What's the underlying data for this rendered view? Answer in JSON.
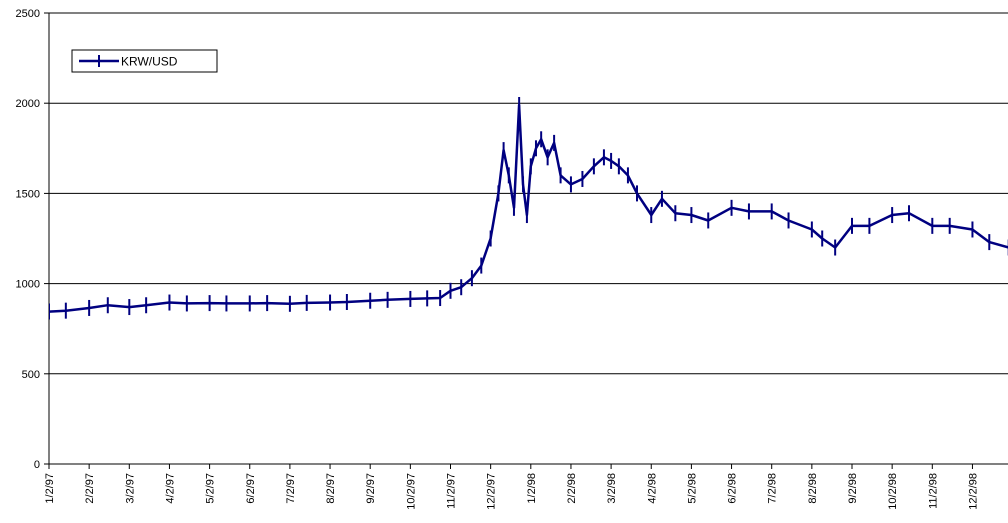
{
  "chart_data": {
    "type": "line",
    "title": "",
    "xlabel": "",
    "ylabel": "",
    "ylim": [
      0,
      2500
    ],
    "yticks": [
      0,
      500,
      1000,
      1500,
      2000,
      2500
    ],
    "grid": "horizontal",
    "legend_position": "top-left",
    "x_tick_labels": [
      "1/2/97",
      "2/2/97",
      "3/2/97",
      "4/2/97",
      "5/2/97",
      "6/2/97",
      "7/2/97",
      "8/2/97",
      "9/2/97",
      "10/2/97",
      "11/2/97",
      "12/2/97",
      "1/2/98",
      "2/2/98",
      "3/2/98",
      "4/2/98",
      "5/2/98",
      "6/2/98",
      "7/2/98",
      "8/2/98",
      "9/2/98",
      "10/2/98",
      "11/2/98",
      "12/2/98"
    ],
    "series": [
      {
        "name": "KRW/USD",
        "color": "#000080",
        "marker": "vertical-tick",
        "x": [
          "1/2/97",
          "1/15/97",
          "2/2/97",
          "2/15/97",
          "3/2/97",
          "3/15/97",
          "4/2/97",
          "4/15/97",
          "5/2/97",
          "5/15/97",
          "6/2/97",
          "6/15/97",
          "7/2/97",
          "7/15/97",
          "8/2/97",
          "8/15/97",
          "9/2/97",
          "9/15/97",
          "10/2/97",
          "10/15/97",
          "10/25/97",
          "11/2/97",
          "11/10/97",
          "11/18/97",
          "11/25/97",
          "12/2/97",
          "12/8/97",
          "12/12/97",
          "12/16/97",
          "12/20/97",
          "12/24/97",
          "12/27/97",
          "12/30/97",
          "1/2/98",
          "1/6/98",
          "1/10/98",
          "1/15/98",
          "1/20/98",
          "1/25/98",
          "2/2/98",
          "2/10/98",
          "2/18/98",
          "2/25/98",
          "3/2/98",
          "3/8/98",
          "3/15/98",
          "3/22/98",
          "4/2/98",
          "4/10/98",
          "4/20/98",
          "5/2/98",
          "5/15/98",
          "6/2/98",
          "6/15/98",
          "7/2/98",
          "7/15/98",
          "8/2/98",
          "8/10/98",
          "8/20/98",
          "9/2/98",
          "9/15/98",
          "10/2/98",
          "10/15/98",
          "11/2/98",
          "11/15/98",
          "12/2/98",
          "12/15/98",
          "12/30/98"
        ],
        "values": [
          845,
          850,
          865,
          880,
          870,
          880,
          895,
          890,
          892,
          890,
          890,
          892,
          888,
          893,
          895,
          898,
          905,
          910,
          915,
          918,
          920,
          960,
          980,
          1030,
          1100,
          1250,
          1500,
          1740,
          1600,
          1420,
          1990,
          1550,
          1380,
          1650,
          1750,
          1800,
          1700,
          1780,
          1600,
          1550,
          1580,
          1650,
          1700,
          1680,
          1650,
          1600,
          1500,
          1380,
          1470,
          1390,
          1380,
          1350,
          1420,
          1400,
          1400,
          1350,
          1300,
          1250,
          1200,
          1320,
          1320,
          1380,
          1390,
          1320,
          1320,
          1300,
          1230,
          1200
        ]
      }
    ]
  }
}
